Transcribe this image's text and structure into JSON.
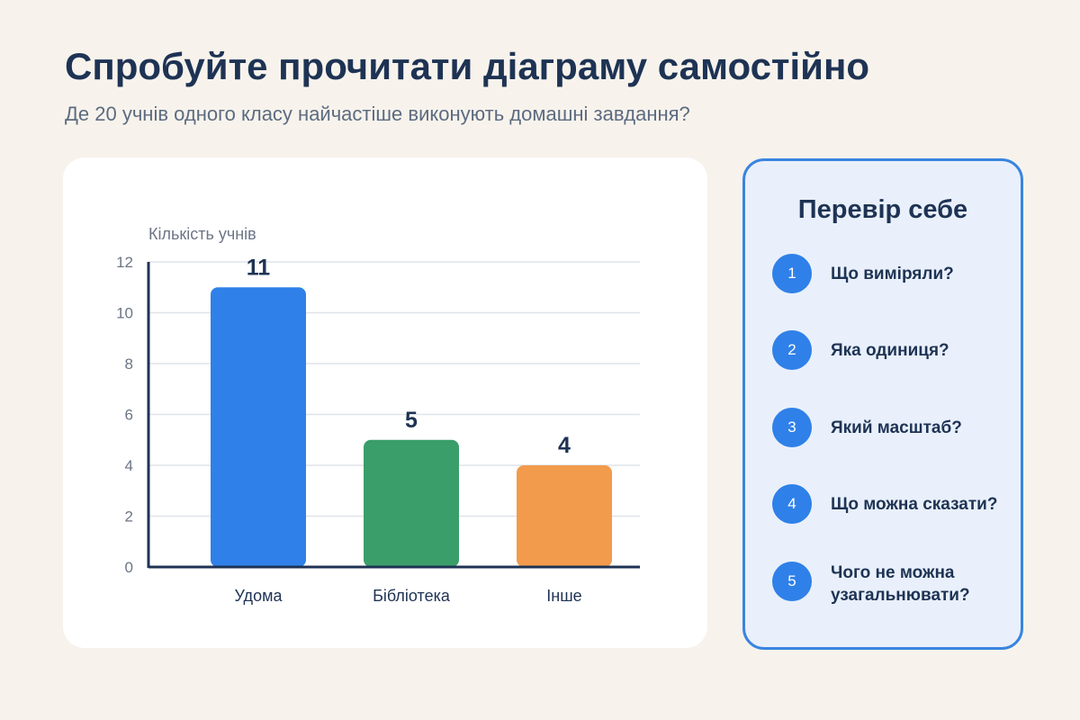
{
  "header": {
    "title": "Спробуйте прочитати діаграму самостійно",
    "subtitle": "Де 20 учнів одного класу найчастіше виконують домашні завдання?"
  },
  "chart_data": {
    "type": "bar",
    "categories": [
      "Удома",
      "Бібліотека",
      "Інше"
    ],
    "values": [
      11,
      5,
      4
    ],
    "colors": [
      "#2f80e8",
      "#3a9e6a",
      "#f29b4c"
    ],
    "ylabel": "Кількість учнів",
    "ylim": [
      0,
      12
    ],
    "yticks": [
      0,
      2,
      4,
      6,
      8,
      10,
      12
    ],
    "grid": true,
    "data_labels": true
  },
  "quiz": {
    "title": "Перевір себе",
    "items": [
      {
        "num": "1",
        "text": "Що виміряли?"
      },
      {
        "num": "2",
        "text": "Яка одиниця?"
      },
      {
        "num": "3",
        "text": "Який масштаб?"
      },
      {
        "num": "4",
        "text": "Що можна сказати?"
      },
      {
        "num": "5",
        "text": "Чого не можна узагальнювати?"
      }
    ]
  }
}
